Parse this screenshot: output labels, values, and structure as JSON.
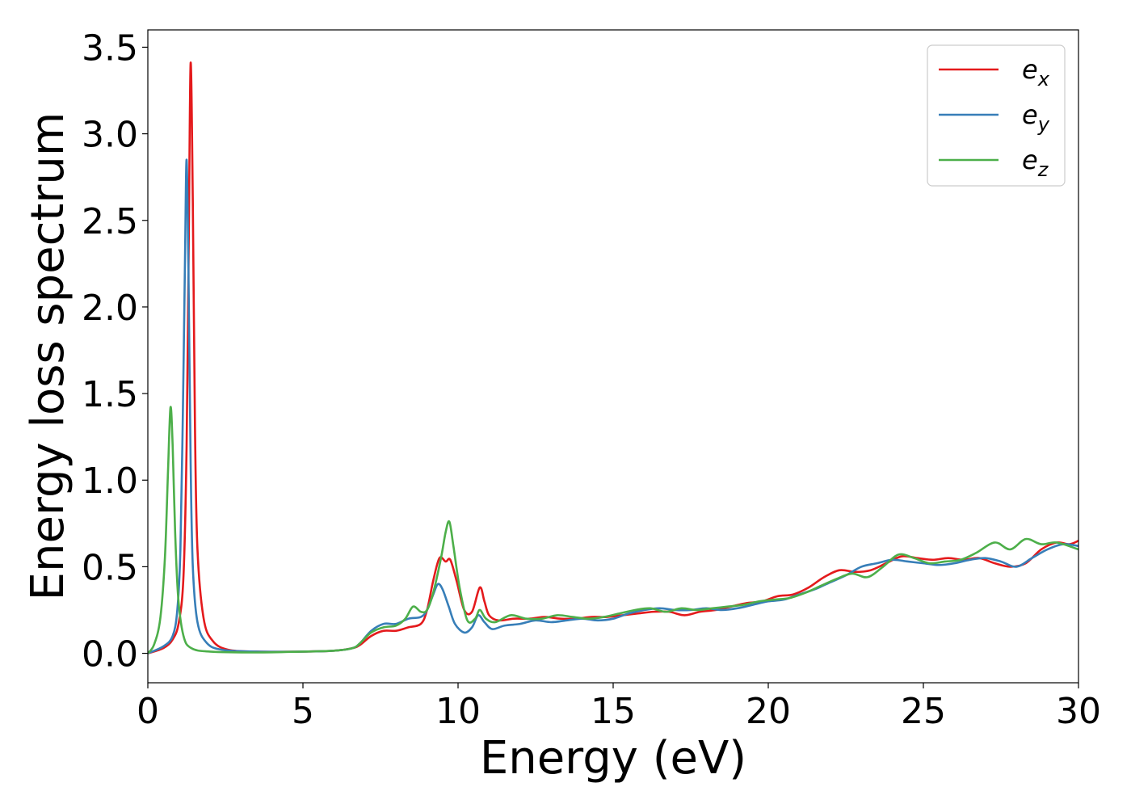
{
  "chart_data": {
    "type": "line",
    "xlabel": "Energy (eV)",
    "ylabel": "Energy loss spectrum",
    "xlim": [
      0,
      30
    ],
    "ylim": [
      -0.17,
      3.6
    ],
    "xticks": [
      0,
      5,
      10,
      15,
      20,
      25,
      30
    ],
    "xtick_labels": [
      "0",
      "5",
      "10",
      "15",
      "20",
      "25",
      "30"
    ],
    "yticks": [
      0.0,
      0.5,
      1.0,
      1.5,
      2.0,
      2.5,
      3.0,
      3.5
    ],
    "ytick_labels": [
      "0.0",
      "0.5",
      "1.0",
      "1.5",
      "2.0",
      "2.5",
      "3.0",
      "3.5"
    ],
    "grid": false,
    "legend_position": "top-right",
    "series": [
      {
        "name": "e_x",
        "label_base": "e",
        "label_sub": "x",
        "color": "#e41a1c",
        "points": [
          [
            0,
            0.0
          ],
          [
            0.5,
            0.03
          ],
          [
            0.8,
            0.08
          ],
          [
            1.0,
            0.18
          ],
          [
            1.15,
            0.45
          ],
          [
            1.25,
            1.2
          ],
          [
            1.32,
            2.4
          ],
          [
            1.38,
            3.41
          ],
          [
            1.45,
            2.6
          ],
          [
            1.52,
            1.3
          ],
          [
            1.6,
            0.6
          ],
          [
            1.8,
            0.2
          ],
          [
            2.1,
            0.07
          ],
          [
            2.6,
            0.02
          ],
          [
            3.5,
            0.01
          ],
          [
            5.0,
            0.01
          ],
          [
            6.0,
            0.015
          ],
          [
            6.6,
            0.03
          ],
          [
            6.85,
            0.05
          ],
          [
            7.2,
            0.1
          ],
          [
            7.6,
            0.13
          ],
          [
            8.0,
            0.13
          ],
          [
            8.4,
            0.15
          ],
          [
            8.8,
            0.17
          ],
          [
            9.0,
            0.25
          ],
          [
            9.2,
            0.42
          ],
          [
            9.4,
            0.55
          ],
          [
            9.6,
            0.53
          ],
          [
            9.75,
            0.54
          ],
          [
            9.95,
            0.42
          ],
          [
            10.2,
            0.25
          ],
          [
            10.45,
            0.24
          ],
          [
            10.7,
            0.38
          ],
          [
            10.85,
            0.3
          ],
          [
            11.0,
            0.22
          ],
          [
            11.3,
            0.19
          ],
          [
            11.8,
            0.2
          ],
          [
            12.3,
            0.2
          ],
          [
            12.8,
            0.21
          ],
          [
            13.3,
            0.2
          ],
          [
            13.8,
            0.2
          ],
          [
            14.3,
            0.21
          ],
          [
            14.8,
            0.21
          ],
          [
            15.3,
            0.22
          ],
          [
            15.8,
            0.23
          ],
          [
            16.3,
            0.24
          ],
          [
            16.8,
            0.24
          ],
          [
            17.3,
            0.22
          ],
          [
            17.8,
            0.24
          ],
          [
            18.3,
            0.25
          ],
          [
            18.8,
            0.27
          ],
          [
            19.3,
            0.29
          ],
          [
            19.8,
            0.3
          ],
          [
            20.3,
            0.33
          ],
          [
            20.8,
            0.34
          ],
          [
            21.3,
            0.38
          ],
          [
            21.8,
            0.44
          ],
          [
            22.3,
            0.48
          ],
          [
            22.8,
            0.47
          ],
          [
            23.3,
            0.48
          ],
          [
            23.8,
            0.52
          ],
          [
            24.3,
            0.56
          ],
          [
            24.8,
            0.55
          ],
          [
            25.3,
            0.54
          ],
          [
            25.8,
            0.55
          ],
          [
            26.3,
            0.54
          ],
          [
            26.8,
            0.55
          ],
          [
            27.3,
            0.52
          ],
          [
            27.8,
            0.5
          ],
          [
            28.3,
            0.52
          ],
          [
            28.8,
            0.6
          ],
          [
            29.3,
            0.64
          ],
          [
            29.7,
            0.63
          ],
          [
            30.0,
            0.65
          ]
        ]
      },
      {
        "name": "e_y",
        "label_base": "e",
        "label_sub": "y",
        "color": "#377eb8",
        "points": [
          [
            0,
            0.0
          ],
          [
            0.5,
            0.04
          ],
          [
            0.8,
            0.1
          ],
          [
            0.95,
            0.25
          ],
          [
            1.05,
            0.6
          ],
          [
            1.13,
            1.4
          ],
          [
            1.2,
            2.3
          ],
          [
            1.25,
            2.85
          ],
          [
            1.31,
            2.2
          ],
          [
            1.38,
            1.1
          ],
          [
            1.45,
            0.5
          ],
          [
            1.6,
            0.18
          ],
          [
            1.9,
            0.06
          ],
          [
            2.4,
            0.02
          ],
          [
            3.5,
            0.01
          ],
          [
            5.0,
            0.01
          ],
          [
            6.0,
            0.015
          ],
          [
            6.6,
            0.03
          ],
          [
            6.85,
            0.06
          ],
          [
            7.2,
            0.13
          ],
          [
            7.6,
            0.17
          ],
          [
            8.0,
            0.17
          ],
          [
            8.4,
            0.2
          ],
          [
            8.8,
            0.21
          ],
          [
            9.0,
            0.25
          ],
          [
            9.2,
            0.34
          ],
          [
            9.35,
            0.4
          ],
          [
            9.5,
            0.37
          ],
          [
            9.7,
            0.27
          ],
          [
            9.9,
            0.17
          ],
          [
            10.2,
            0.12
          ],
          [
            10.45,
            0.15
          ],
          [
            10.65,
            0.22
          ],
          [
            10.85,
            0.18
          ],
          [
            11.1,
            0.14
          ],
          [
            11.5,
            0.16
          ],
          [
            12.0,
            0.17
          ],
          [
            12.5,
            0.19
          ],
          [
            13.0,
            0.18
          ],
          [
            13.5,
            0.19
          ],
          [
            14.0,
            0.2
          ],
          [
            14.5,
            0.19
          ],
          [
            15.0,
            0.2
          ],
          [
            15.5,
            0.23
          ],
          [
            16.0,
            0.25
          ],
          [
            16.5,
            0.26
          ],
          [
            17.0,
            0.25
          ],
          [
            17.5,
            0.25
          ],
          [
            18.0,
            0.26
          ],
          [
            18.5,
            0.25
          ],
          [
            19.0,
            0.26
          ],
          [
            19.5,
            0.28
          ],
          [
            20.0,
            0.3
          ],
          [
            20.5,
            0.31
          ],
          [
            21.0,
            0.34
          ],
          [
            21.5,
            0.37
          ],
          [
            22.0,
            0.41
          ],
          [
            22.5,
            0.45
          ],
          [
            23.0,
            0.5
          ],
          [
            23.5,
            0.52
          ],
          [
            24.0,
            0.54
          ],
          [
            24.5,
            0.53
          ],
          [
            25.0,
            0.52
          ],
          [
            25.5,
            0.51
          ],
          [
            26.0,
            0.52
          ],
          [
            26.5,
            0.54
          ],
          [
            27.0,
            0.55
          ],
          [
            27.5,
            0.53
          ],
          [
            28.0,
            0.5
          ],
          [
            28.5,
            0.55
          ],
          [
            29.0,
            0.6
          ],
          [
            29.5,
            0.63
          ],
          [
            30.0,
            0.62
          ]
        ]
      },
      {
        "name": "e_z",
        "label_base": "e",
        "label_sub": "z",
        "color": "#4daf4a",
        "points": [
          [
            0,
            0.0
          ],
          [
            0.2,
            0.05
          ],
          [
            0.4,
            0.2
          ],
          [
            0.55,
            0.55
          ],
          [
            0.65,
            1.05
          ],
          [
            0.73,
            1.42
          ],
          [
            0.8,
            1.2
          ],
          [
            0.88,
            0.7
          ],
          [
            0.98,
            0.32
          ],
          [
            1.15,
            0.1
          ],
          [
            1.4,
            0.03
          ],
          [
            2.0,
            0.01
          ],
          [
            3.5,
            0.005
          ],
          [
            5.0,
            0.01
          ],
          [
            6.0,
            0.015
          ],
          [
            6.6,
            0.03
          ],
          [
            6.85,
            0.06
          ],
          [
            7.2,
            0.12
          ],
          [
            7.6,
            0.15
          ],
          [
            8.0,
            0.16
          ],
          [
            8.3,
            0.2
          ],
          [
            8.55,
            0.27
          ],
          [
            8.8,
            0.24
          ],
          [
            9.0,
            0.25
          ],
          [
            9.2,
            0.35
          ],
          [
            9.45,
            0.55
          ],
          [
            9.6,
            0.7
          ],
          [
            9.72,
            0.76
          ],
          [
            9.85,
            0.62
          ],
          [
            10.05,
            0.38
          ],
          [
            10.3,
            0.19
          ],
          [
            10.55,
            0.2
          ],
          [
            10.7,
            0.25
          ],
          [
            10.9,
            0.2
          ],
          [
            11.2,
            0.18
          ],
          [
            11.7,
            0.22
          ],
          [
            12.2,
            0.2
          ],
          [
            12.7,
            0.2
          ],
          [
            13.2,
            0.22
          ],
          [
            13.7,
            0.21
          ],
          [
            14.2,
            0.2
          ],
          [
            14.7,
            0.21
          ],
          [
            15.2,
            0.23
          ],
          [
            15.7,
            0.25
          ],
          [
            16.2,
            0.26
          ],
          [
            16.7,
            0.24
          ],
          [
            17.2,
            0.26
          ],
          [
            17.7,
            0.25
          ],
          [
            18.2,
            0.26
          ],
          [
            18.7,
            0.27
          ],
          [
            19.2,
            0.28
          ],
          [
            19.7,
            0.3
          ],
          [
            20.2,
            0.31
          ],
          [
            20.7,
            0.32
          ],
          [
            21.2,
            0.35
          ],
          [
            21.7,
            0.39
          ],
          [
            22.2,
            0.43
          ],
          [
            22.7,
            0.46
          ],
          [
            23.2,
            0.44
          ],
          [
            23.7,
            0.5
          ],
          [
            24.2,
            0.57
          ],
          [
            24.7,
            0.55
          ],
          [
            25.2,
            0.52
          ],
          [
            25.7,
            0.53
          ],
          [
            26.2,
            0.54
          ],
          [
            26.7,
            0.58
          ],
          [
            27.3,
            0.64
          ],
          [
            27.8,
            0.6
          ],
          [
            28.3,
            0.66
          ],
          [
            28.8,
            0.63
          ],
          [
            29.3,
            0.64
          ],
          [
            30.0,
            0.6
          ]
        ]
      }
    ]
  }
}
